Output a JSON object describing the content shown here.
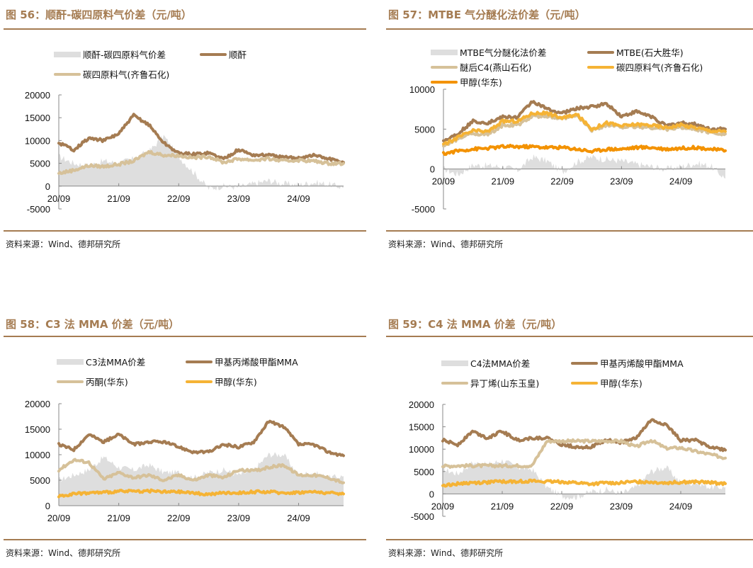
{
  "source_label": "资料来源：Wind、德邦研究所",
  "colors": {
    "title": "#a57c52",
    "spread_area": "#dedede",
    "brown": "#a57c52",
    "tan": "#d6c199",
    "yellow": "#f5b335",
    "orange": "#f39200"
  },
  "chart_data": [
    {
      "id": "fig56",
      "type": "line",
      "title": "图 56：顺酐-碳四原料气价差（元/吨）",
      "xlabel": "",
      "ylabel": "",
      "x_ticks": [
        "20/09",
        "21/09",
        "22/09",
        "23/09",
        "24/09"
      ],
      "x_range": [
        "2020-09",
        "2025-06"
      ],
      "y_ticks": [
        -5000,
        0,
        5000,
        10000,
        15000,
        20000
      ],
      "ylim": [
        -5000,
        20000
      ],
      "legend": [
        "顺酐-碳四原料气价差",
        "顺酐",
        "碳四原料气(齐鲁石化)"
      ],
      "legend_placement": "top",
      "x_months": [
        0,
        3,
        6,
        9,
        12,
        15,
        18,
        21,
        24,
        27,
        30,
        33,
        36,
        39,
        42,
        45,
        48,
        51,
        54,
        57
      ],
      "series": [
        {
          "name": "顺酐-碳四原料气价差",
          "kind": "area",
          "color_key": "spread_area",
          "values": [
            6500,
            5000,
            4500,
            5500,
            5000,
            6000,
            7500,
            11000,
            6500,
            3000,
            -500,
            0,
            -300,
            500,
            1200,
            500,
            300,
            800,
            400,
            -300
          ]
        },
        {
          "name": "顺酐",
          "kind": "line",
          "color_key": "brown",
          "values": [
            9500,
            8000,
            10500,
            10000,
            11500,
            15500,
            13500,
            9500,
            7200,
            7000,
            7300,
            6000,
            8000,
            6800,
            6800,
            6300,
            6200,
            6800,
            6000,
            5200
          ]
        },
        {
          "name": "碳四原料气(齐鲁石化)",
          "kind": "line",
          "color_key": "tan",
          "values": [
            2800,
            3500,
            4500,
            4300,
            4800,
            5500,
            7500,
            6800,
            6700,
            6200,
            6500,
            5200,
            6000,
            5700,
            6000,
            5500,
            5700,
            5500,
            5000,
            5000
          ]
        }
      ]
    },
    {
      "id": "fig57",
      "type": "line",
      "title": "图 57：MTBE 气分醚化法价差（元/吨）",
      "xlabel": "",
      "ylabel": "",
      "x_ticks": [
        "20/09",
        "21/09",
        "22/09",
        "23/09",
        "24/09"
      ],
      "x_range": [
        "2020-09",
        "2025-06"
      ],
      "y_ticks": [
        -5000,
        0,
        5000,
        10000
      ],
      "ylim": [
        -5000,
        10000
      ],
      "legend": [
        "MTBE气分醚化法价差",
        "MTBE(石大胜华)",
        "醚后C4(燕山石化)",
        "碳四原料气(齐鲁石化)",
        "甲醇(华东)"
      ],
      "legend_placement": "top",
      "x_months": [
        0,
        3,
        6,
        9,
        12,
        15,
        18,
        21,
        24,
        27,
        30,
        33,
        36,
        39,
        42,
        45,
        48,
        51,
        54,
        57
      ],
      "series": [
        {
          "name": "MTBE气分醚化法价差",
          "kind": "area",
          "color_key": "spread_area",
          "values": [
            0,
            -700,
            500,
            400,
            300,
            -200,
            1500,
            1000,
            -400,
            900,
            1500,
            1200,
            1000,
            600,
            300,
            0,
            300,
            700,
            400,
            -1200
          ]
        },
        {
          "name": "MTBE(石大胜华)",
          "kind": "line",
          "color_key": "brown",
          "values": [
            3500,
            4500,
            6000,
            5800,
            6500,
            6500,
            8500,
            7500,
            7000,
            7600,
            7800,
            8200,
            6600,
            7200,
            6600,
            5400,
            5800,
            5600,
            5000,
            5000
          ]
        },
        {
          "name": "醚后C4(燕山石化)",
          "kind": "line",
          "color_key": "tan",
          "values": [
            2800,
            3800,
            4500,
            4300,
            5500,
            5500,
            6600,
            6600,
            6300,
            6700,
            4900,
            5500,
            5300,
            5300,
            5200,
            5000,
            5200,
            5000,
            4600,
            4400
          ]
        },
        {
          "name": "碳四原料气(齐鲁石化)",
          "kind": "line",
          "color_key": "yellow",
          "values": [
            3000,
            4000,
            4800,
            4700,
            6000,
            6000,
            7000,
            7000,
            6400,
            6800,
            5000,
            5800,
            5400,
            5600,
            5500,
            5200,
            5500,
            5200,
            4800,
            4700
          ]
        },
        {
          "name": "甲醇(华东)",
          "kind": "line",
          "color_key": "orange",
          "values": [
            1900,
            2300,
            2500,
            2600,
            2800,
            2800,
            2800,
            2700,
            2700,
            2500,
            2200,
            2500,
            2500,
            2700,
            2700,
            2500,
            2600,
            2700,
            2500,
            2300
          ]
        }
      ]
    },
    {
      "id": "fig58",
      "type": "line",
      "title": "图 58：C3 法 MMA 价差（元/吨）",
      "xlabel": "",
      "ylabel": "",
      "x_ticks": [
        "20/09",
        "21/09",
        "22/09",
        "23/09",
        "24/09"
      ],
      "x_range": [
        "2020-09",
        "2025-06"
      ],
      "y_ticks": [
        0,
        5000,
        10000,
        15000,
        20000
      ],
      "ylim": [
        0,
        20000
      ],
      "legend": [
        "C3法MMA价差",
        "甲基丙烯酸甲酯MMA",
        "丙酮(华东)",
        "甲醇(华东)"
      ],
      "legend_placement": "top",
      "x_months": [
        0,
        3,
        6,
        9,
        12,
        15,
        18,
        21,
        24,
        27,
        30,
        33,
        36,
        39,
        42,
        45,
        48,
        51,
        54,
        57
      ],
      "series": [
        {
          "name": "C3法MMA价差",
          "kind": "area",
          "color_key": "spread_area",
          "values": [
            5000,
            6000,
            7000,
            9500,
            7500,
            7000,
            8000,
            6500,
            6500,
            5500,
            6500,
            7000,
            6000,
            7000,
            10000,
            10000,
            6000,
            6500,
            5500,
            5800
          ]
        },
        {
          "name": "甲基丙烯酸甲酯MMA",
          "kind": "line",
          "color_key": "brown",
          "values": [
            12000,
            11000,
            14000,
            12500,
            14000,
            12000,
            12500,
            12500,
            11500,
            10500,
            10500,
            12000,
            11500,
            12500,
            16500,
            15500,
            12000,
            12000,
            10500,
            9800
          ]
        },
        {
          "name": "丙酮(华东)",
          "kind": "line",
          "color_key": "tan",
          "values": [
            7000,
            9000,
            8500,
            5200,
            6500,
            5500,
            6000,
            5000,
            6000,
            5000,
            6000,
            5500,
            7000,
            6800,
            7500,
            8000,
            6000,
            6000,
            5500,
            4500
          ]
        },
        {
          "name": "甲醇(华东)",
          "kind": "line",
          "color_key": "yellow",
          "values": [
            1900,
            2300,
            2500,
            2600,
            2800,
            2800,
            2900,
            2700,
            2700,
            2500,
            2200,
            2500,
            2500,
            2700,
            2700,
            2500,
            2600,
            2700,
            2500,
            2300
          ]
        }
      ]
    },
    {
      "id": "fig59",
      "type": "line",
      "title": "图 59：C4 法 MMA 价差（元/吨）",
      "xlabel": "",
      "ylabel": "",
      "x_ticks": [
        "20/09",
        "21/09",
        "22/09",
        "23/09",
        "24/09"
      ],
      "x_range": [
        "2020-09",
        "2025-06"
      ],
      "y_ticks": [
        -5000,
        0,
        5000,
        10000,
        15000,
        20000
      ],
      "ylim": [
        -5000,
        20000
      ],
      "legend": [
        "C4法MMA价差",
        "甲基丙烯酸甲酯MMA",
        "异丁烯(山东玉皇)",
        "甲醇(华东)"
      ],
      "legend_placement": "top",
      "x_months": [
        0,
        3,
        6,
        9,
        12,
        15,
        18,
        21,
        24,
        27,
        30,
        33,
        36,
        39,
        42,
        45,
        48,
        51,
        54,
        57
      ],
      "series": [
        {
          "name": "C4法MMA价差",
          "kind": "area",
          "color_key": "spread_area",
          "values": [
            5500,
            4500,
            7000,
            6500,
            7500,
            6000,
            5500,
            1500,
            -500,
            -700,
            500,
            1000,
            0,
            1500,
            5000,
            6000,
            2500,
            2500,
            1500,
            1500
          ]
        },
        {
          "name": "甲基丙烯酸甲酯MMA",
          "kind": "line",
          "color_key": "brown",
          "values": [
            12000,
            11000,
            14000,
            12500,
            14000,
            12000,
            12500,
            12500,
            11000,
            10500,
            10500,
            12000,
            11500,
            12500,
            16500,
            15500,
            12000,
            12000,
            10500,
            9800
          ]
        },
        {
          "name": "异丁烯(山东玉皇)",
          "kind": "line",
          "color_key": "tan",
          "values": [
            6200,
            6300,
            6300,
            6300,
            6300,
            6300,
            6300,
            11800,
            11800,
            11800,
            11800,
            11800,
            11800,
            10500,
            12000,
            10200,
            10300,
            9500,
            8800,
            8000
          ]
        },
        {
          "name": "甲醇(华东)",
          "kind": "line",
          "color_key": "yellow",
          "values": [
            1900,
            2300,
            2500,
            2600,
            2800,
            2800,
            2900,
            2700,
            2700,
            2500,
            2200,
            2500,
            2500,
            2700,
            2700,
            2500,
            2600,
            2700,
            2500,
            2300
          ]
        }
      ]
    }
  ]
}
